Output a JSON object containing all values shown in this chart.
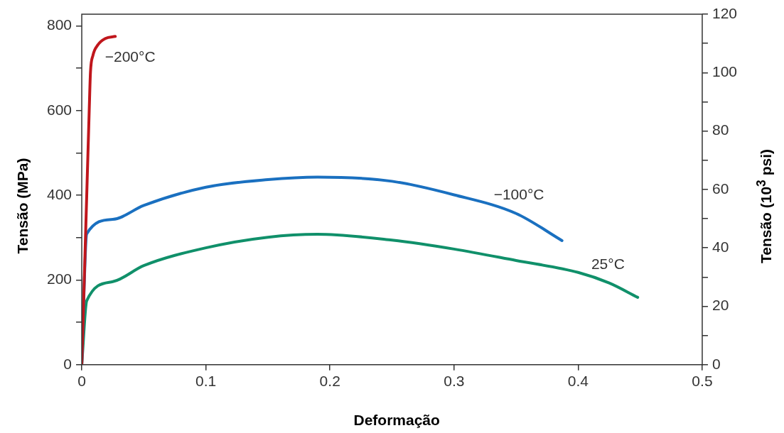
{
  "chart_data": {
    "type": "line",
    "xlabel": "Deformação",
    "ylabel": "Tensão (MPa)",
    "y2label": "Tensão (10$^{3}$ psi)",
    "xlim": [
      0,
      0.5
    ],
    "xticks": [
      0,
      0.1,
      0.2,
      0.3,
      0.4,
      0.5
    ],
    "ylim": [
      0,
      827.4
    ],
    "yticks": [
      0,
      {
        "value": 100,
        "label": null
      },
      200,
      {
        "value": 300,
        "label": null
      },
      400,
      {
        "value": 500,
        "label": null
      },
      600,
      {
        "value": 700,
        "label": null
      },
      800
    ],
    "y2lim": [
      0,
      120
    ],
    "y2ticks": [
      0,
      {
        "value": 10,
        "label": null
      },
      20,
      {
        "value": 30,
        "label": null
      },
      40,
      {
        "value": 50,
        "label": null
      },
      60,
      {
        "value": 70,
        "label": null
      },
      80,
      {
        "value": 90,
        "label": null
      },
      100,
      {
        "value": 110,
        "label": null
      },
      120
    ],
    "series": [
      {
        "name": "−200°C",
        "color": "#c0161c",
        "x": [
          0,
          0.002,
          0.004,
          0.006,
          0.007,
          0.009,
          0.013,
          0.019,
          0.027
        ],
        "values": [
          0,
          200,
          400,
          600,
          690,
          730,
          755,
          770,
          775
        ]
      },
      {
        "name": "−100°C",
        "color": "#1a70c0",
        "x": [
          0,
          0.004,
          0.025,
          0.05,
          0.1,
          0.15,
          0.19,
          0.25,
          0.3,
          0.35,
          0.387
        ],
        "values": [
          0,
          309,
          343,
          376,
          419,
          437,
          443,
          433,
          401,
          357,
          293
        ]
      },
      {
        "name": "25°C",
        "color": "#10906a",
        "x": [
          0,
          0.004,
          0.025,
          0.05,
          0.1,
          0.15,
          0.19,
          0.25,
          0.3,
          0.35,
          0.4,
          0.425,
          0.448
        ],
        "values": [
          0,
          151,
          196,
          234,
          276,
          301,
          308,
          294,
          273,
          246,
          218,
          193,
          159
        ]
      }
    ],
    "grid": false,
    "legend": false,
    "marker": "none",
    "line_style": "solid"
  }
}
